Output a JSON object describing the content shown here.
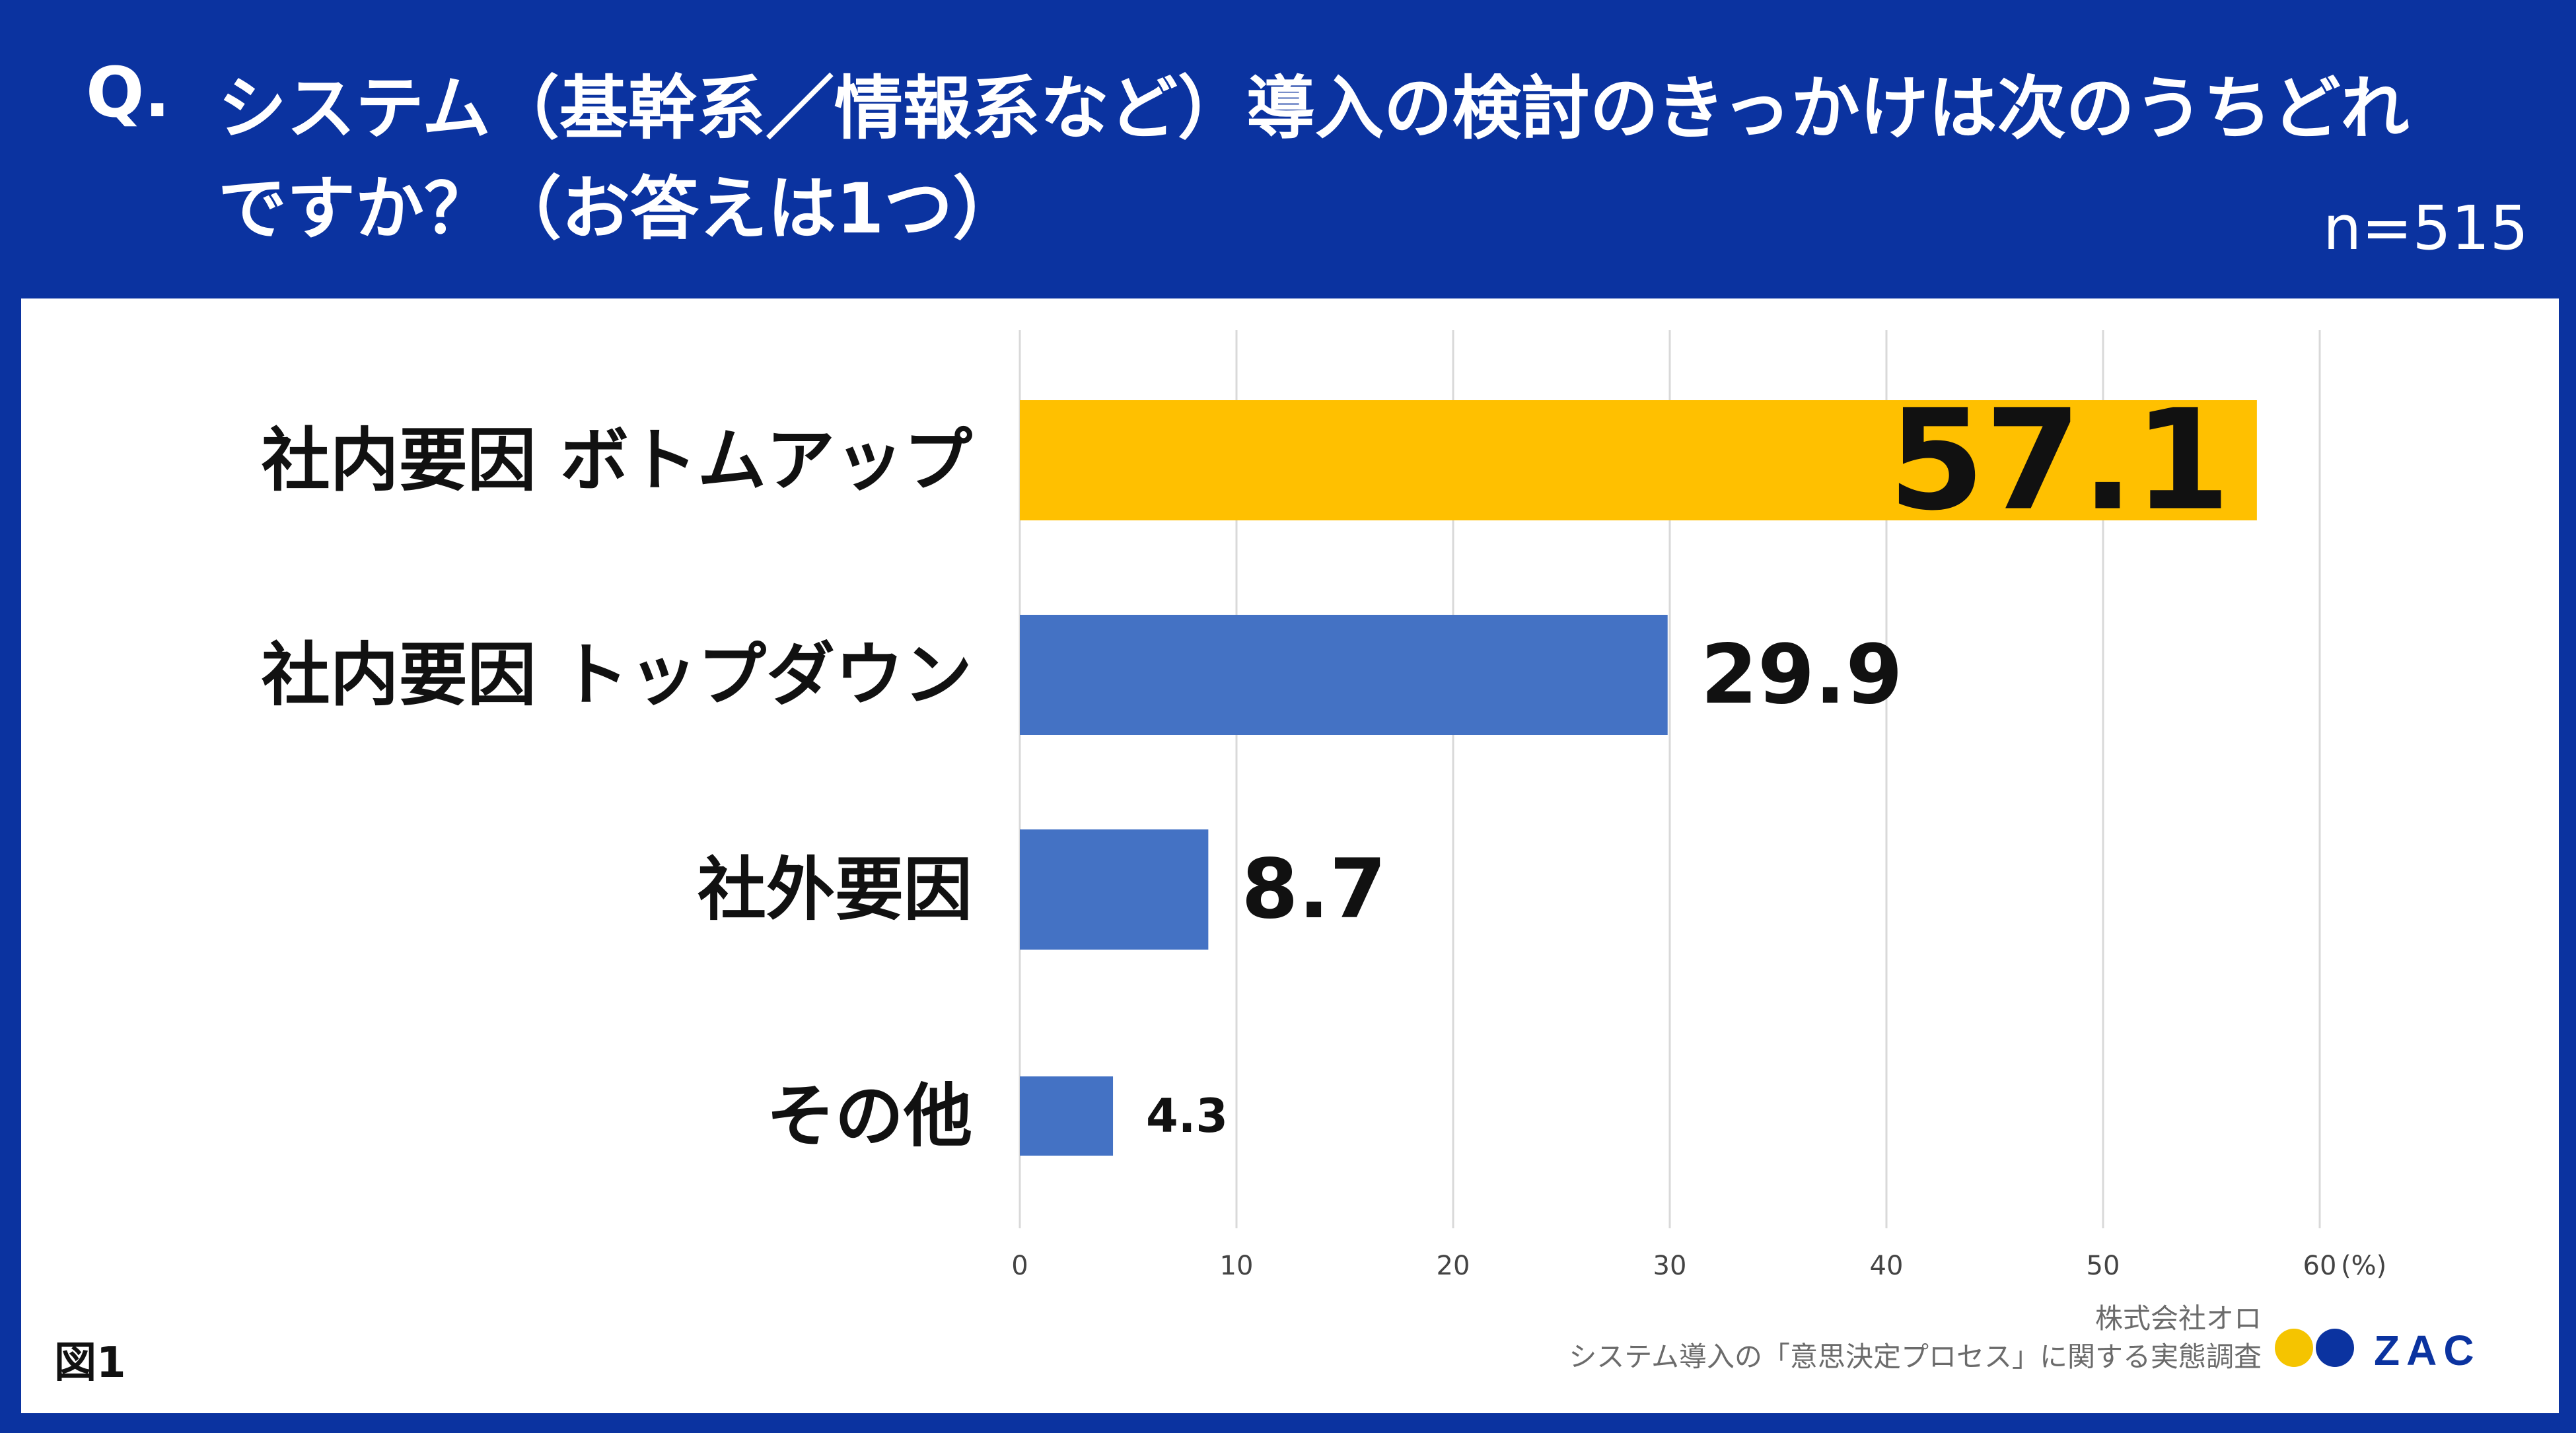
{
  "header": {
    "q_mark": "Q.",
    "question": "システム（基幹系／情報系など）導入の検討のきっかけは次のうちどれですか？（お答えは1つ）",
    "sample": "n=515"
  },
  "figure_label": "図1",
  "credit": {
    "company": "株式会社オロ",
    "survey": "システム導入の「意思決定プロセス」に関する実態調査"
  },
  "logo": {
    "text": "ZAC"
  },
  "colors": {
    "header_bg": "#0b33a0",
    "highlight_bar": "#ffc000",
    "bar": "#4472c4",
    "grid": "#d9d9d9"
  },
  "chart_data": {
    "type": "bar",
    "orientation": "horizontal",
    "categories": [
      "社内要因 ボトムアップ",
      "社内要因 トップダウン",
      "社外要因",
      "その他"
    ],
    "values": [
      57.1,
      29.9,
      8.7,
      4.3
    ],
    "value_labels": [
      "57.1",
      "29.9",
      "8.7",
      "4.3"
    ],
    "highlight_index": 0,
    "xlim": [
      0,
      60
    ],
    "xticks": [
      0,
      10,
      20,
      30,
      40,
      50,
      60
    ],
    "xtick_labels": [
      "0",
      "10",
      "20",
      "30",
      "40",
      "50",
      "60"
    ],
    "unit": "(%)",
    "grid": true
  }
}
